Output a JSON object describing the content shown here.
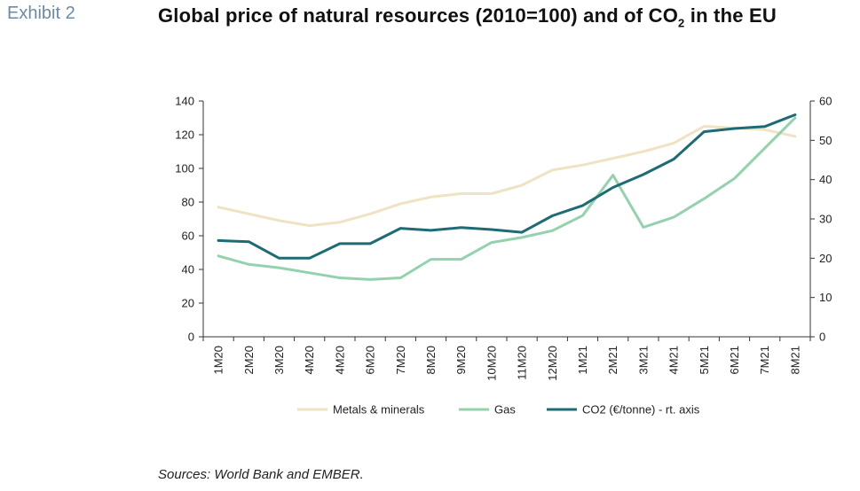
{
  "header": {
    "exhibit": "Exhibit 2",
    "title_main": "Global price of natural resources (2010=100) and of CO",
    "title_sub": "2",
    "title_end": " in the EU"
  },
  "footer": {
    "source": "Sources: World Bank and EMBER."
  },
  "chart_data": {
    "type": "line",
    "title": "Global price of natural resources (2010=100) and of CO2 in the EU",
    "categories": [
      "1M20",
      "2M20",
      "3M20",
      "4M20",
      "4M20",
      "6M20",
      "7M20",
      "8M20",
      "9M20",
      "10M20",
      "11M20",
      "12M20",
      "1M21",
      "2M21",
      "3M21",
      "4M21",
      "5M21",
      "6M21",
      "7M21",
      "8M21"
    ],
    "y_left": {
      "lim": [
        0,
        140
      ],
      "ticks": [
        0,
        20,
        40,
        60,
        80,
        100,
        120,
        140
      ]
    },
    "y_right": {
      "lim": [
        0,
        60
      ],
      "ticks": [
        0,
        10,
        20,
        30,
        40,
        50,
        60
      ]
    },
    "grid": false,
    "legend_position": "bottom",
    "series": [
      {
        "name": "Metals & minerals",
        "axis": "left",
        "color": "#efe3c3",
        "values": [
          77,
          73,
          69,
          66,
          68,
          73,
          79,
          83,
          85,
          85,
          90,
          99,
          102,
          106,
          110,
          115,
          125,
          124,
          123,
          119
        ]
      },
      {
        "name": "Gas",
        "axis": "left",
        "color": "#93d2ad",
        "values": [
          48,
          43,
          41,
          38,
          35,
          34,
          35,
          46,
          46,
          56,
          59,
          63,
          72,
          96,
          65,
          71,
          82,
          94,
          112,
          130
        ]
      },
      {
        "name": "CO2 (€/tonne) - rt. axis",
        "axis": "right",
        "color": "#1d6b75",
        "values": [
          24.5,
          24.2,
          20,
          20,
          23.7,
          23.7,
          27.6,
          27.1,
          27.8,
          27.3,
          26.6,
          30.8,
          33.4,
          38,
          41.3,
          45.2,
          52.2,
          53,
          53.5,
          56.5
        ]
      }
    ]
  }
}
